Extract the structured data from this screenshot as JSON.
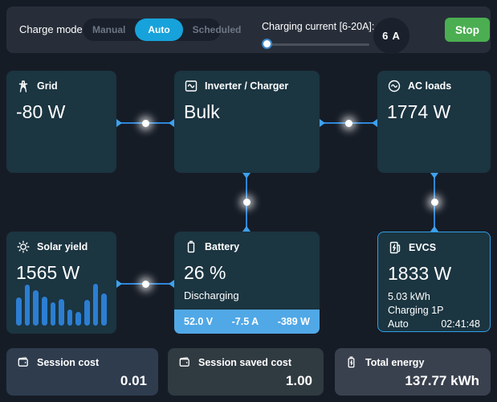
{
  "colors": {
    "accent_blue": "#17a2db",
    "connector_blue": "#2e86d8",
    "battery_footer_blue": "#51a8e6",
    "solar_bar_blue": "#2c7ed2",
    "stop_green": "#4bae51",
    "panel_teal": "#1b3541",
    "evcs_border": "#2f9fe8"
  },
  "header": {
    "charge_mode_label": "Charge mode:",
    "modes": [
      "Manual",
      "Auto",
      "Scheduled"
    ],
    "active_mode": "Auto",
    "charging_current_label": "Charging current [6-20A]:",
    "charging_current_value": "6 A",
    "slider": {
      "min": 6,
      "max": 20,
      "value": 6
    },
    "stop_label": "Stop"
  },
  "panels": {
    "grid": {
      "title": "Grid",
      "value": "-80 W"
    },
    "inverter": {
      "title": "Inverter / Charger",
      "value": "Bulk"
    },
    "ac_loads": {
      "title": "AC loads",
      "value": "1774 W"
    },
    "solar": {
      "title": "Solar yield",
      "value": "1565 W",
      "bars": [
        64,
        95,
        81,
        66,
        54,
        61,
        37,
        32,
        60,
        97,
        74
      ]
    },
    "battery": {
      "title": "Battery",
      "value": "26 %",
      "status": "Discharging",
      "voltage": "52.0 V",
      "current": "-7.5 A",
      "power": "-389 W"
    },
    "evcs": {
      "title": "EVCS",
      "value": "1833 W",
      "energy": "5.03 kWh",
      "status": "Charging 1P",
      "mode": "Auto",
      "time": "02:41:48"
    }
  },
  "footer": {
    "cards": [
      {
        "title": "Session cost",
        "value": "0.01"
      },
      {
        "title": "Session saved cost",
        "value": "1.00"
      },
      {
        "title": "Total energy",
        "value": "137.77 kWh"
      }
    ]
  }
}
